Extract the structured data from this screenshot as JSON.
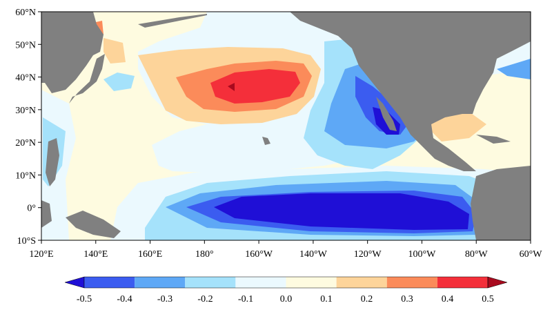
{
  "map": {
    "lon_ticks": [
      "120°E",
      "140°E",
      "160°E",
      "180°",
      "160°W",
      "140°W",
      "120°W",
      "100°W",
      "80°W",
      "60°W"
    ],
    "lat_ticks": [
      "60°N",
      "50°N",
      "40°N",
      "30°N",
      "20°N",
      "10°N",
      "0°",
      "10°S"
    ],
    "lon_range": [
      120,
      300
    ],
    "lat_range": [
      -10,
      60
    ],
    "land_color": "#808080"
  },
  "colorbar": {
    "levels": [
      "-0.5",
      "-0.4",
      "-0.3",
      "-0.2",
      "-0.1",
      "0.0",
      "0.1",
      "0.2",
      "0.3",
      "0.4",
      "0.5"
    ],
    "colors": [
      "#1f0fd6",
      "#3b5cf0",
      "#5ea8f6",
      "#a5e2fb",
      "#ebf9fe",
      "#fefbe0",
      "#fdd49a",
      "#fb8b5a",
      "#f42f3a",
      "#a80a1e"
    ]
  },
  "features": [
    {
      "name": "equatorial-cold-tongue",
      "value_range": [
        -0.5,
        -0.4
      ]
    },
    {
      "name": "north-pacific-warm-core",
      "value_range": [
        0.3,
        0.4
      ]
    },
    {
      "name": "baja-california-cold-patch",
      "value_range": [
        -0.5,
        -0.4
      ]
    }
  ]
}
